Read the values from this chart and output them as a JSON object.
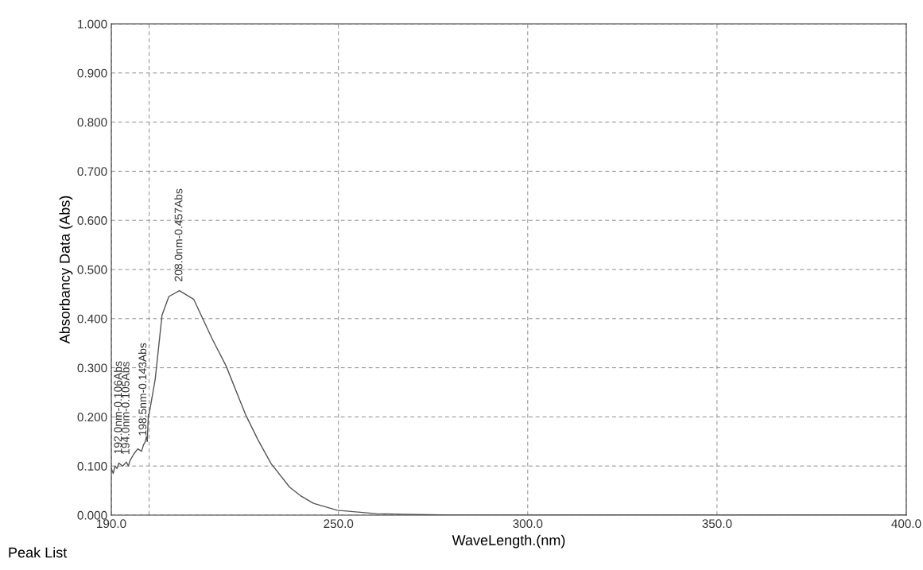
{
  "chart_data": {
    "type": "line",
    "xlabel": "WaveLength.(nm)",
    "ylabel": "Absorbancy Data (Abs)",
    "series": [
      {
        "color": "#555555",
        "x": [
          190,
          190.5,
          191,
          191.5,
          192,
          193,
          194,
          194.5,
          195,
          196,
          197,
          198,
          198.5,
          199,
          199.3,
          199.5,
          199.8,
          200,
          201.6,
          203.4,
          205.2,
          208,
          211.8,
          213.9,
          216.7,
          220.3,
          225.5,
          228.7,
          232.2,
          237.1,
          239.9,
          243.4,
          249.7,
          260,
          280,
          300,
          350,
          400
        ],
        "values": [
          0.095,
          0.085,
          0.1,
          0.095,
          0.106,
          0.1,
          0.108,
          0.1,
          0.112,
          0.125,
          0.135,
          0.13,
          0.143,
          0.15,
          0.16,
          0.15,
          0.205,
          0.206,
          0.277,
          0.407,
          0.445,
          0.457,
          0.439,
          0.404,
          0.358,
          0.304,
          0.204,
          0.154,
          0.105,
          0.057,
          0.04,
          0.024,
          0.01,
          0.003,
          0,
          0,
          0,
          0
        ]
      }
    ],
    "xlim": [
      190,
      400
    ],
    "xticks": [
      {
        "value": 190,
        "label": "190.0"
      },
      {
        "value": 200,
        "label": null
      },
      {
        "value": 250,
        "label": "250.0"
      },
      {
        "value": 300,
        "label": "300.0"
      },
      {
        "value": 350,
        "label": "350.0"
      },
      {
        "value": 400,
        "label": "400.0"
      }
    ],
    "ylim": [
      0,
      1
    ],
    "yticks": [
      {
        "value": 0,
        "label": "0.000"
      },
      {
        "value": 0.1,
        "label": "0.100"
      },
      {
        "value": 0.2,
        "label": "0.200"
      },
      {
        "value": 0.3,
        "label": "0.300"
      },
      {
        "value": 0.4,
        "label": "0.400"
      },
      {
        "value": 0.5,
        "label": "0.500"
      },
      {
        "value": 0.6,
        "label": "0.600"
      },
      {
        "value": 0.7,
        "label": "0.700"
      },
      {
        "value": 0.8,
        "label": "0.800"
      },
      {
        "value": 0.9,
        "label": "0.900"
      },
      {
        "value": 1,
        "label": "1.000"
      }
    ],
    "grid": true,
    "marker": "none",
    "line_style": "solid",
    "legend": false,
    "annotations": [
      {
        "text": "192.0nm-0.106Abs",
        "x": 192,
        "y": 0.106
      },
      {
        "text": "194.0nm-0.105Abs",
        "x": 194,
        "y": 0.105
      },
      {
        "text": "198.5nm-0.143Abs",
        "x": 198.5,
        "y": 0.143
      },
      {
        "text": "208.0nm-0.457Abs",
        "x": 208,
        "y": 0.457
      },
      "Peak List"
    ]
  }
}
